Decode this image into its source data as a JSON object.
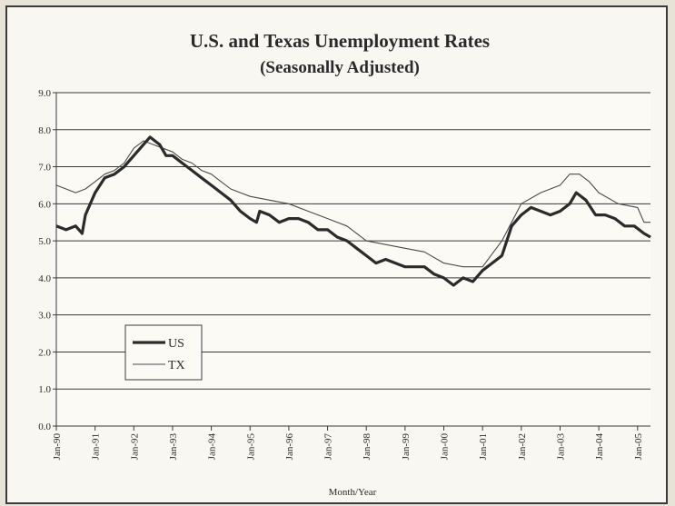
{
  "chart_data": {
    "type": "line",
    "title": "U.S. and Texas Unemployment Rates",
    "subtitle": "(Seasonally Adjusted)",
    "xlabel": "Month/Year",
    "ylabel": "",
    "ylim": [
      0,
      9
    ],
    "yticks": [
      "0.0",
      "1.0",
      "2.0",
      "3.0",
      "4.0",
      "5.0",
      "6.0",
      "7.0",
      "8.0",
      "9.0"
    ],
    "xticks": [
      "Jan-90",
      "Jan-91",
      "Jan-92",
      "Jan-93",
      "Jan-94",
      "Jan-95",
      "Jan-96",
      "Jan-97",
      "Jan-98",
      "Jan-99",
      "Jan-00",
      "Jan-01",
      "Jan-02",
      "Jan-03",
      "Jan-04",
      "Jan-05"
    ],
    "xlim": [
      "1990-01",
      "2005-05"
    ],
    "grid": "horizontal",
    "legend": "bottom-left",
    "series": [
      {
        "name": "US",
        "color": "#2b2b2b",
        "points": [
          [
            "1990-01",
            5.4
          ],
          [
            "1990-04",
            5.3
          ],
          [
            "1990-07",
            5.4
          ],
          [
            "1990-09",
            5.2
          ],
          [
            "1990-10",
            5.7
          ],
          [
            "1991-01",
            6.3
          ],
          [
            "1991-04",
            6.7
          ],
          [
            "1991-07",
            6.8
          ],
          [
            "1991-10",
            7.0
          ],
          [
            "1992-01",
            7.3
          ],
          [
            "1992-03",
            7.5
          ],
          [
            "1992-06",
            7.8
          ],
          [
            "1992-09",
            7.6
          ],
          [
            "1992-11",
            7.3
          ],
          [
            "1993-01",
            7.3
          ],
          [
            "1993-04",
            7.1
          ],
          [
            "1993-07",
            6.9
          ],
          [
            "1993-10",
            6.7
          ],
          [
            "1994-01",
            6.5
          ],
          [
            "1994-04",
            6.3
          ],
          [
            "1994-07",
            6.1
          ],
          [
            "1994-10",
            5.8
          ],
          [
            "1995-01",
            5.6
          ],
          [
            "1995-03",
            5.5
          ],
          [
            "1995-04",
            5.8
          ],
          [
            "1995-07",
            5.7
          ],
          [
            "1995-10",
            5.5
          ],
          [
            "1996-01",
            5.6
          ],
          [
            "1996-04",
            5.6
          ],
          [
            "1996-07",
            5.5
          ],
          [
            "1996-10",
            5.3
          ],
          [
            "1997-01",
            5.3
          ],
          [
            "1997-04",
            5.1
          ],
          [
            "1997-07",
            5.0
          ],
          [
            "1997-10",
            4.8
          ],
          [
            "1998-01",
            4.6
          ],
          [
            "1998-04",
            4.4
          ],
          [
            "1998-07",
            4.5
          ],
          [
            "1998-10",
            4.4
          ],
          [
            "1999-01",
            4.3
          ],
          [
            "1999-04",
            4.3
          ],
          [
            "1999-07",
            4.3
          ],
          [
            "1999-10",
            4.1
          ],
          [
            "2000-01",
            4.0
          ],
          [
            "2000-04",
            3.8
          ],
          [
            "2000-07",
            4.0
          ],
          [
            "2000-10",
            3.9
          ],
          [
            "2001-01",
            4.2
          ],
          [
            "2001-04",
            4.4
          ],
          [
            "2001-07",
            4.6
          ],
          [
            "2001-10",
            5.4
          ],
          [
            "2002-01",
            5.7
          ],
          [
            "2002-04",
            5.9
          ],
          [
            "2002-07",
            5.8
          ],
          [
            "2002-10",
            5.7
          ],
          [
            "2003-01",
            5.8
          ],
          [
            "2003-04",
            6.0
          ],
          [
            "2003-06",
            6.3
          ],
          [
            "2003-09",
            6.1
          ],
          [
            "2003-12",
            5.7
          ],
          [
            "2004-03",
            5.7
          ],
          [
            "2004-06",
            5.6
          ],
          [
            "2004-09",
            5.4
          ],
          [
            "2004-12",
            5.4
          ],
          [
            "2005-03",
            5.2
          ],
          [
            "2005-05",
            5.1
          ]
        ]
      },
      {
        "name": "TX",
        "color": "#4a4a4a",
        "points": [
          [
            "1990-01",
            6.5
          ],
          [
            "1990-04",
            6.4
          ],
          [
            "1990-07",
            6.3
          ],
          [
            "1990-10",
            6.4
          ],
          [
            "1991-01",
            6.6
          ],
          [
            "1991-04",
            6.8
          ],
          [
            "1991-07",
            6.9
          ],
          [
            "1991-10",
            7.1
          ],
          [
            "1992-01",
            7.5
          ],
          [
            "1992-04",
            7.7
          ],
          [
            "1992-07",
            7.6
          ],
          [
            "1992-10",
            7.5
          ],
          [
            "1993-01",
            7.4
          ],
          [
            "1993-04",
            7.2
          ],
          [
            "1993-07",
            7.1
          ],
          [
            "1993-10",
            6.9
          ],
          [
            "1994-01",
            6.8
          ],
          [
            "1994-04",
            6.6
          ],
          [
            "1994-07",
            6.4
          ],
          [
            "1994-10",
            6.3
          ],
          [
            "1995-01",
            6.2
          ],
          [
            "1995-07",
            6.1
          ],
          [
            "1996-01",
            6.0
          ],
          [
            "1996-07",
            5.8
          ],
          [
            "1997-01",
            5.6
          ],
          [
            "1997-07",
            5.4
          ],
          [
            "1998-01",
            5.0
          ],
          [
            "1998-07",
            4.9
          ],
          [
            "1999-01",
            4.8
          ],
          [
            "1999-07",
            4.7
          ],
          [
            "2000-01",
            4.4
          ],
          [
            "2000-07",
            4.3
          ],
          [
            "2001-01",
            4.3
          ],
          [
            "2001-07",
            5.0
          ],
          [
            "2002-01",
            6.0
          ],
          [
            "2002-07",
            6.3
          ],
          [
            "2003-01",
            6.5
          ],
          [
            "2003-04",
            6.8
          ],
          [
            "2003-07",
            6.8
          ],
          [
            "2003-10",
            6.6
          ],
          [
            "2004-01",
            6.3
          ],
          [
            "2004-07",
            6.0
          ],
          [
            "2005-01",
            5.9
          ],
          [
            "2005-03",
            5.5
          ],
          [
            "2005-05",
            5.5
          ]
        ]
      }
    ]
  }
}
